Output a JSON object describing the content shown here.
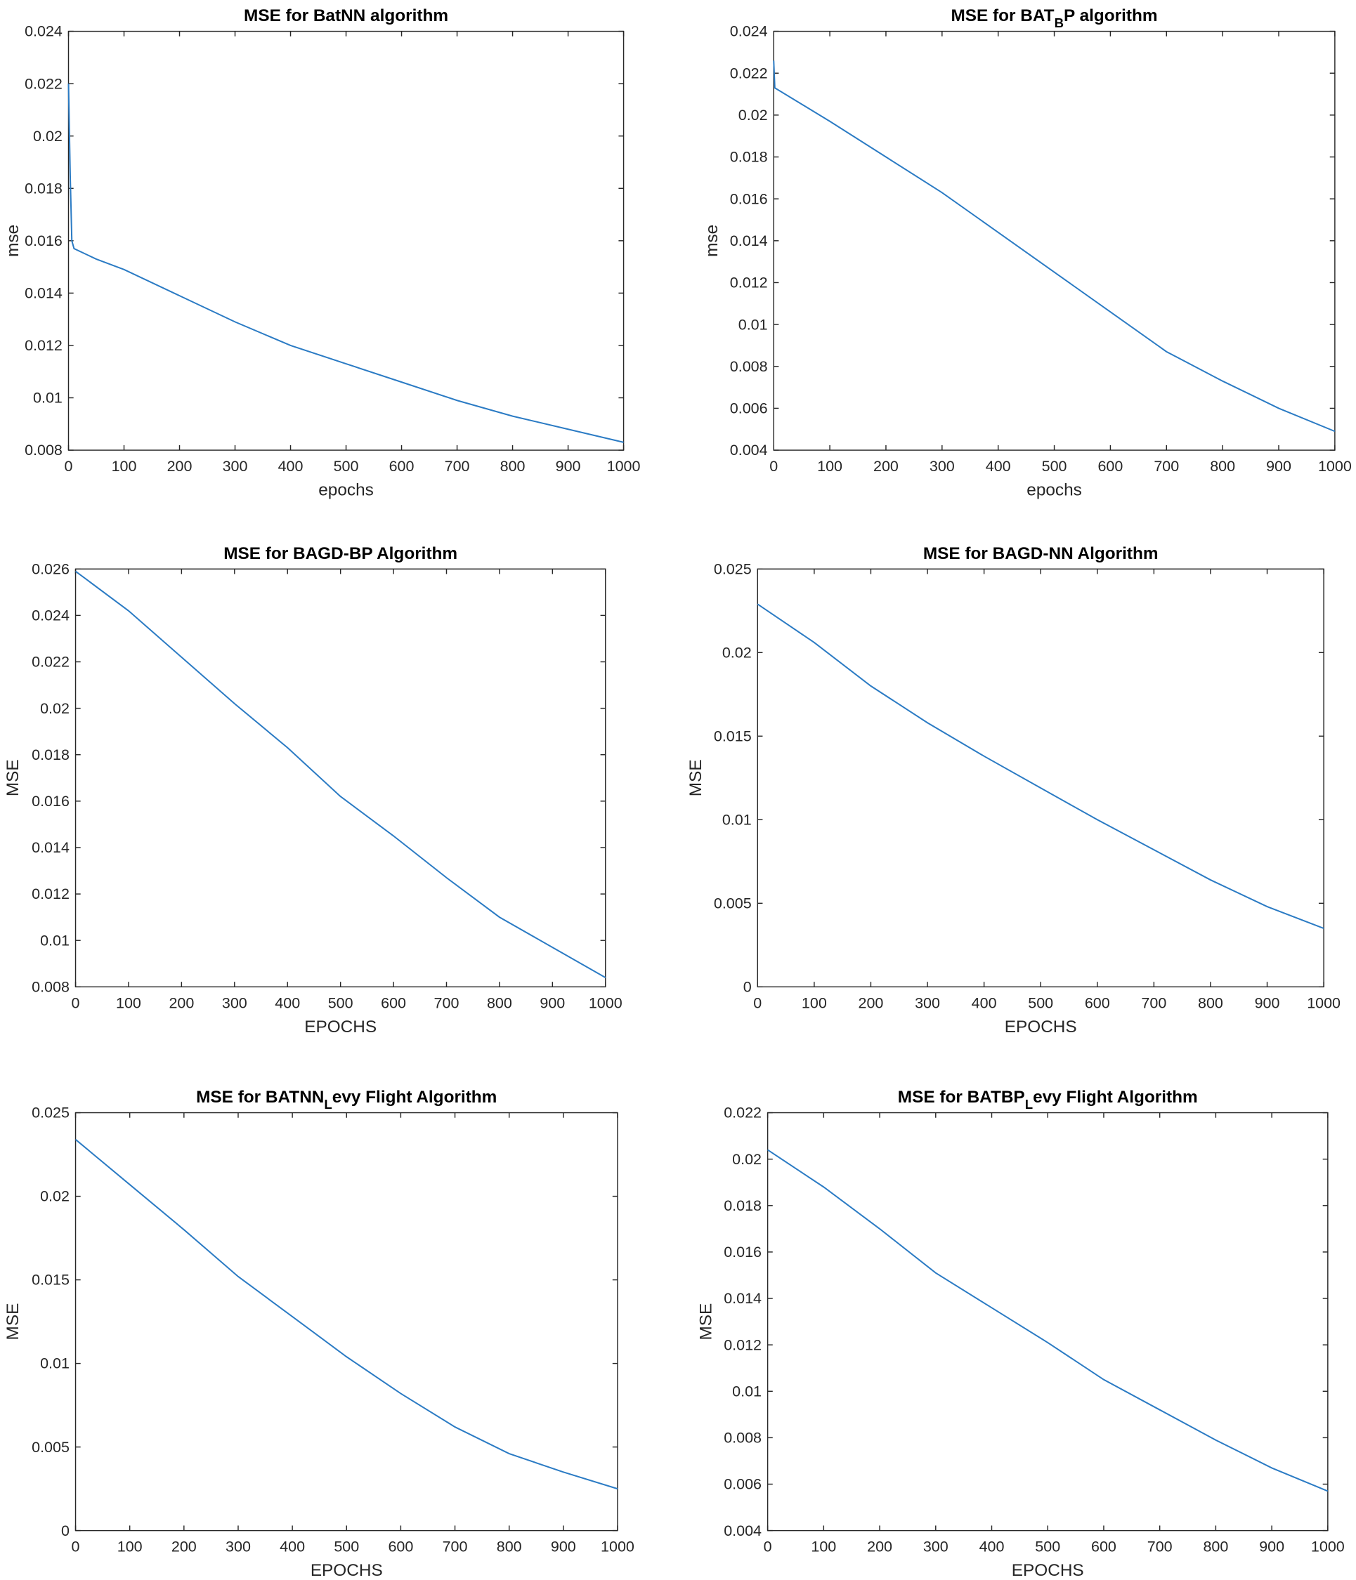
{
  "line_color": "#2b7bc4",
  "chart_data": [
    {
      "type": "line",
      "title": {
        "main": "MSE for BatNN algorithm",
        "sub": "",
        "rest": ""
      },
      "xlabel": "epochs",
      "ylabel": "mse",
      "xlim": [
        0,
        1000
      ],
      "ylim": [
        0.008,
        0.024
      ],
      "xticks": [
        "0",
        "100",
        "200",
        "300",
        "400",
        "500",
        "600",
        "700",
        "800",
        "900",
        "1000"
      ],
      "yticks": [
        "0.008",
        "0.01",
        "0.012",
        "0.014",
        "0.016",
        "0.018",
        "0.02",
        "0.022",
        "0.024"
      ],
      "grid": false,
      "x": [
        0,
        3,
        6,
        10,
        50,
        100,
        200,
        300,
        400,
        500,
        600,
        700,
        800,
        900,
        1000
      ],
      "y": [
        0.022,
        0.0185,
        0.016,
        0.0157,
        0.0153,
        0.0149,
        0.0139,
        0.0129,
        0.012,
        0.0113,
        0.0106,
        0.0099,
        0.0093,
        0.0088,
        0.0083
      ]
    },
    {
      "type": "line",
      "title": {
        "main": "MSE for BAT",
        "sub": "B",
        "rest": "P algorithm"
      },
      "xlabel": "epochs",
      "ylabel": "mse",
      "xlim": [
        0,
        1000
      ],
      "ylim": [
        0.004,
        0.024
      ],
      "xticks": [
        "0",
        "100",
        "200",
        "300",
        "400",
        "500",
        "600",
        "700",
        "800",
        "900",
        "1000"
      ],
      "yticks": [
        "0.004",
        "0.006",
        "0.008",
        "0.01",
        "0.012",
        "0.014",
        "0.016",
        "0.018",
        "0.02",
        "0.022",
        "0.024"
      ],
      "grid": false,
      "x": [
        0,
        2,
        100,
        200,
        300,
        400,
        500,
        600,
        700,
        800,
        900,
        1000
      ],
      "y": [
        0.0226,
        0.0213,
        0.0197,
        0.018,
        0.0163,
        0.0144,
        0.0125,
        0.0106,
        0.0087,
        0.0073,
        0.006,
        0.0049
      ]
    },
    {
      "type": "line",
      "title": {
        "main": "MSE for BAGD-BP Algorithm",
        "sub": "",
        "rest": ""
      },
      "xlabel": "EPOCHS",
      "ylabel": "MSE",
      "xlim": [
        0,
        1000
      ],
      "ylim": [
        0.008,
        0.026
      ],
      "xticks": [
        "0",
        "100",
        "200",
        "300",
        "400",
        "500",
        "600",
        "700",
        "800",
        "900",
        "1000"
      ],
      "yticks": [
        "0.008",
        "0.01",
        "0.012",
        "0.014",
        "0.016",
        "0.018",
        "0.02",
        "0.022",
        "0.024",
        "0.026"
      ],
      "grid": false,
      "x": [
        0,
        100,
        200,
        300,
        400,
        500,
        600,
        700,
        800,
        900,
        1000
      ],
      "y": [
        0.0259,
        0.0242,
        0.0222,
        0.0202,
        0.0183,
        0.0162,
        0.0145,
        0.0127,
        0.011,
        0.0097,
        0.0084
      ]
    },
    {
      "type": "line",
      "title": {
        "main": "MSE for BAGD-NN Algorithm",
        "sub": "",
        "rest": ""
      },
      "xlabel": "EPOCHS",
      "ylabel": "MSE",
      "xlim": [
        0,
        1000
      ],
      "ylim": [
        0,
        0.025
      ],
      "xticks": [
        "0",
        "100",
        "200",
        "300",
        "400",
        "500",
        "600",
        "700",
        "800",
        "900",
        "1000"
      ],
      "yticks": [
        "0",
        "0.005",
        "0.01",
        "0.015",
        "0.02",
        "0.025"
      ],
      "grid": false,
      "x": [
        0,
        100,
        200,
        300,
        400,
        500,
        600,
        700,
        800,
        900,
        1000
      ],
      "y": [
        0.0229,
        0.0206,
        0.018,
        0.0158,
        0.0138,
        0.0119,
        0.01,
        0.0082,
        0.0064,
        0.0048,
        0.0035
      ]
    },
    {
      "type": "line",
      "title": {
        "main": "MSE for BATNN",
        "sub": "L",
        "rest": "evy Flight Algorithm"
      },
      "xlabel": "EPOCHS",
      "ylabel": "MSE",
      "xlim": [
        0,
        1000
      ],
      "ylim": [
        0,
        0.025
      ],
      "xticks": [
        "0",
        "100",
        "200",
        "300",
        "400",
        "500",
        "600",
        "700",
        "800",
        "900",
        "1000"
      ],
      "yticks": [
        "0",
        "0.005",
        "0.01",
        "0.015",
        "0.02",
        "0.025"
      ],
      "grid": false,
      "x": [
        0,
        100,
        200,
        300,
        400,
        500,
        600,
        700,
        800,
        900,
        1000
      ],
      "y": [
        0.0234,
        0.0207,
        0.018,
        0.0152,
        0.0128,
        0.0104,
        0.0082,
        0.0062,
        0.0046,
        0.0035,
        0.0025
      ]
    },
    {
      "type": "line",
      "title": {
        "main": "MSE for BATBP",
        "sub": "L",
        "rest": "evy Flight Algorithm"
      },
      "xlabel": "EPOCHS",
      "ylabel": "MSE",
      "xlim": [
        0,
        1000
      ],
      "ylim": [
        0.004,
        0.022
      ],
      "xticks": [
        "0",
        "100",
        "200",
        "300",
        "400",
        "500",
        "600",
        "700",
        "800",
        "900",
        "1000"
      ],
      "yticks": [
        "0.004",
        "0.006",
        "0.008",
        "0.01",
        "0.012",
        "0.014",
        "0.016",
        "0.018",
        "0.02",
        "0.022"
      ],
      "grid": false,
      "x": [
        0,
        100,
        200,
        300,
        400,
        500,
        600,
        700,
        800,
        900,
        1000
      ],
      "y": [
        0.0204,
        0.0188,
        0.017,
        0.0151,
        0.0136,
        0.0121,
        0.0105,
        0.0092,
        0.0079,
        0.0067,
        0.0057
      ]
    }
  ]
}
